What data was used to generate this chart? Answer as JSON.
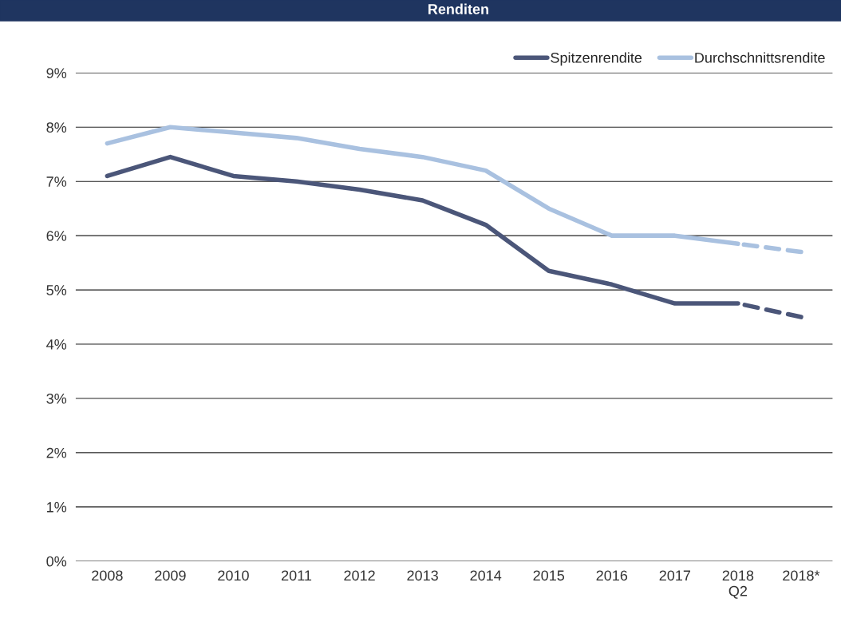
{
  "chart_data": {
    "type": "line",
    "title": "Renditen",
    "categories": [
      "2008",
      "2009",
      "2010",
      "2011",
      "2012",
      "2013",
      "2014",
      "2015",
      "2016",
      "2017",
      "2018\nQ2",
      "2018*"
    ],
    "series": [
      {
        "name": "Spitzenrendite",
        "color": "#4b5679",
        "line_style": "solid",
        "values": [
          7.1,
          7.45,
          7.1,
          7.0,
          6.85,
          6.65,
          6.2,
          5.35,
          5.1,
          4.75,
          4.75,
          null
        ]
      },
      {
        "name": "Durchschnittsrendite",
        "color": "#a9c1e0",
        "line_style": "solid",
        "values": [
          7.7,
          8.0,
          7.9,
          7.8,
          7.6,
          7.45,
          7.2,
          6.5,
          6.0,
          6.0,
          5.85,
          null
        ]
      },
      {
        "color": "#4b5679",
        "line_style": "dashed",
        "values": [
          null,
          null,
          null,
          null,
          null,
          null,
          null,
          null,
          null,
          null,
          4.75,
          4.5
        ]
      },
      {
        "color": "#a9c1e0",
        "line_style": "dashed",
        "values": [
          null,
          null,
          null,
          null,
          null,
          null,
          null,
          null,
          null,
          null,
          5.85,
          5.7
        ]
      }
    ],
    "ylim": [
      0,
      9
    ],
    "yticks": [
      {
        "value": 0,
        "label": "0%"
      },
      {
        "value": 1,
        "label": "1%"
      },
      {
        "value": 2,
        "label": "2%"
      },
      {
        "value": 3,
        "label": "3%"
      },
      {
        "value": 4,
        "label": "4%"
      },
      {
        "value": 5,
        "label": "5%"
      },
      {
        "value": 6,
        "label": "6%"
      },
      {
        "value": 7,
        "label": "7%"
      },
      {
        "value": 8,
        "label": "8%"
      },
      {
        "value": 9,
        "label": "9%"
      }
    ],
    "grid": "y",
    "legend": "top right",
    "marker": "none"
  }
}
